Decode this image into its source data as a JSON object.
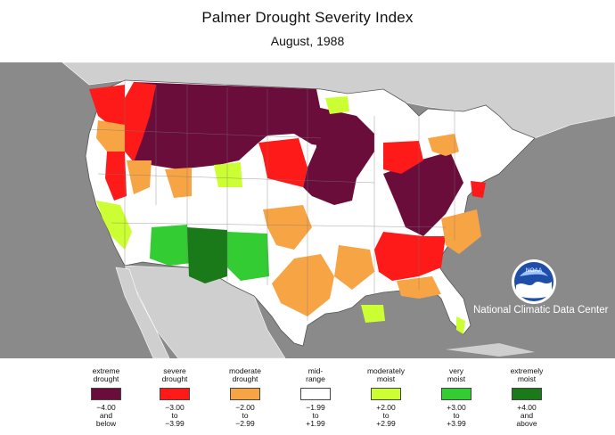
{
  "header": {
    "title": "Palmer Drought Severity Index",
    "subtitle": "August, 1988"
  },
  "credit": {
    "org": "National Climatic Data Center",
    "logo_text": "NOAA"
  },
  "colors": {
    "extreme_drought": "#6b0d3b",
    "severe_drought": "#ff1a1a",
    "moderate_drought": "#f7a445",
    "mid_range": "#ffffff",
    "moderately_moist": "#ccff33",
    "very_moist": "#33cc33",
    "extremely_moist": "#1a7a1a",
    "ocean": "#8a8a8a",
    "land_outside": "#cfcfcf"
  },
  "legend": [
    {
      "label_1": "extreme",
      "label_2": "drought",
      "range_1": "−4.00",
      "range_2": "and",
      "range_3": "below",
      "color": "#6b0d3b"
    },
    {
      "label_1": "severe",
      "label_2": "drought",
      "range_1": "−3.00",
      "range_2": "to",
      "range_3": "−3.99",
      "color": "#ff1a1a"
    },
    {
      "label_1": "moderate",
      "label_2": "drought",
      "range_1": "−2.00",
      "range_2": "to",
      "range_3": "−2.99",
      "color": "#f7a445"
    },
    {
      "label_1": "mid-",
      "label_2": "range",
      "range_1": "−1.99",
      "range_2": "to",
      "range_3": "+1.99",
      "color": "#ffffff"
    },
    {
      "label_1": "moderately",
      "label_2": "moist",
      "range_1": "+2.00",
      "range_2": "to",
      "range_3": "+2.99",
      "color": "#ccff33"
    },
    {
      "label_1": "very",
      "label_2": "moist",
      "range_1": "+3.00",
      "range_2": "to",
      "range_3": "+3.99",
      "color": "#33cc33"
    },
    {
      "label_1": "extremely",
      "label_2": "moist",
      "range_1": "+4.00",
      "range_2": "and",
      "range_3": "above",
      "color": "#1a7a1a"
    }
  ]
}
